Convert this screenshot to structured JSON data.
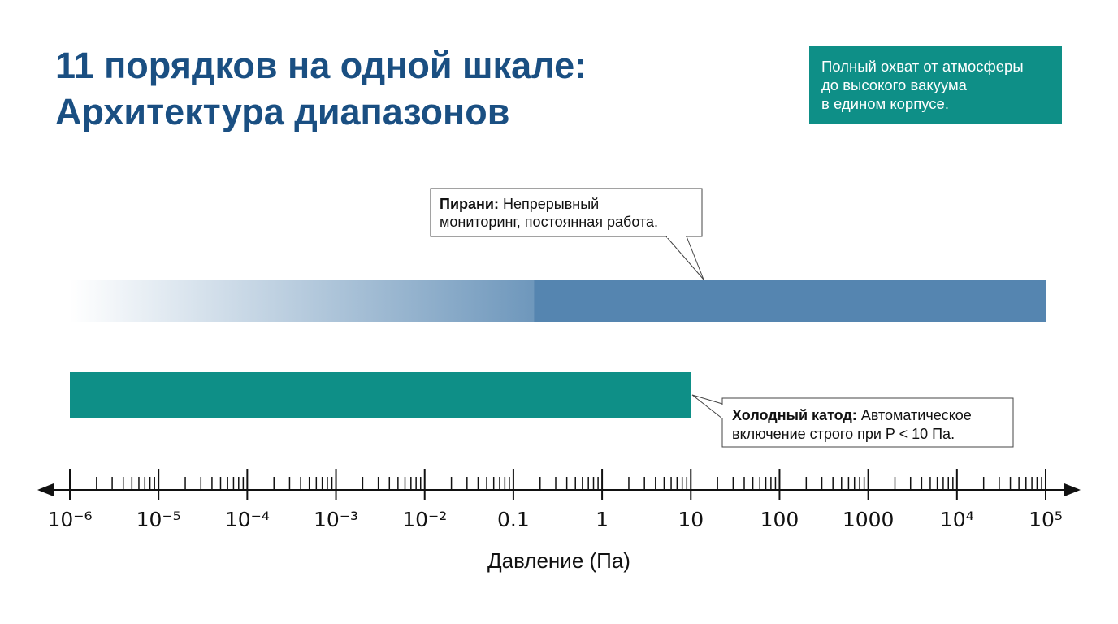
{
  "chart_data": {
    "type": "range",
    "title_lines": [
      "11 порядков на одной шкале:",
      "Архитектура диапазонов"
    ],
    "note_lines": [
      "Полный охват от атмосферы",
      "до высокого вакуума",
      "в едином корпусе."
    ],
    "x_label": "Давление (Па)",
    "x_log": true,
    "xlim": [
      1e-06,
      100000
    ],
    "xticks": [
      {
        "value": 1e-06,
        "label": "10⁻⁶"
      },
      {
        "value": 1e-05,
        "label": "10⁻⁵"
      },
      {
        "value": 0.0001,
        "label": "10⁻⁴"
      },
      {
        "value": 0.001,
        "label": "10⁻³"
      },
      {
        "value": 0.01,
        "label": "10⁻²"
      },
      0.1,
      1,
      10,
      100,
      1000,
      {
        "value": 10000,
        "label": "10⁴"
      },
      {
        "value": 100000,
        "label": "10⁵"
      }
    ],
    "minor_multipliers": [
      2,
      3,
      4,
      5,
      6,
      7,
      8,
      9
    ],
    "series": [
      {
        "name": "Пирани:",
        "description_lines": [
          "Непрерывный",
          "мониторинг, постоянная работа."
        ],
        "color": "#5585b0",
        "start": 1e-06,
        "solid_from": 0.17,
        "end": 100000
      },
      {
        "name": "Холодный катод:",
        "description_lines": [
          "Автоматическое",
          "включение строго при P < 10 Па."
        ],
        "color": "#0e8f87",
        "start": 1e-06,
        "end": 10
      }
    ]
  }
}
